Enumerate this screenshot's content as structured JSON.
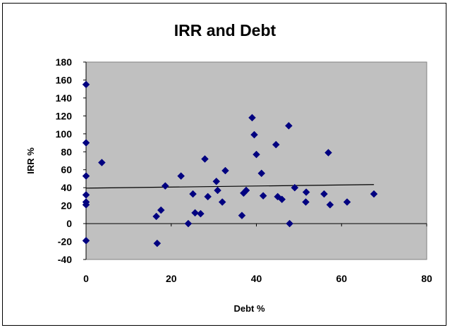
{
  "chart_data": {
    "type": "scatter",
    "title": "IRR and Debt",
    "xlabel": "Debt %",
    "ylabel": "IRR %",
    "xlim": [
      0,
      80
    ],
    "ylim": [
      -40,
      180
    ],
    "xticks": [
      "0",
      "20",
      "40",
      "60",
      "80"
    ],
    "yticks": [
      "-40",
      "-20",
      "0",
      "20",
      "40",
      "60",
      "80",
      "100",
      "120",
      "140",
      "160",
      "180"
    ],
    "grid": false,
    "plot_background": "#c0c0c0",
    "marker_color": "#000080",
    "marker": "diamond",
    "series": [
      {
        "points": [
          [
            0,
            155
          ],
          [
            0,
            90
          ],
          [
            0,
            53
          ],
          [
            0,
            32
          ],
          [
            0,
            24
          ],
          [
            0,
            21
          ],
          [
            0,
            -19
          ],
          [
            3.7,
            68
          ],
          [
            16.5,
            8
          ],
          [
            16.7,
            -22
          ],
          [
            17.6,
            15
          ],
          [
            18.6,
            42
          ],
          [
            22.3,
            53
          ],
          [
            24,
            0
          ],
          [
            25.1,
            33
          ],
          [
            25.6,
            12
          ],
          [
            26.9,
            11
          ],
          [
            27.9,
            72
          ],
          [
            28.6,
            30
          ],
          [
            30.6,
            47
          ],
          [
            30.9,
            37
          ],
          [
            32,
            24
          ],
          [
            32.7,
            59
          ],
          [
            36.6,
            9
          ],
          [
            37,
            34
          ],
          [
            37.6,
            37
          ],
          [
            39,
            118
          ],
          [
            39.5,
            99
          ],
          [
            40,
            77
          ],
          [
            41.2,
            56
          ],
          [
            41.6,
            31
          ],
          [
            44.6,
            88
          ],
          [
            45,
            30
          ],
          [
            46,
            27
          ],
          [
            47.6,
            109
          ],
          [
            47.8,
            0
          ],
          [
            49,
            40
          ],
          [
            51.6,
            24
          ],
          [
            51.7,
            35
          ],
          [
            55.9,
            33
          ],
          [
            56.9,
            79
          ],
          [
            57.3,
            21
          ],
          [
            61.3,
            24
          ],
          [
            67.6,
            33
          ]
        ]
      }
    ],
    "trendline": {
      "type": "linear",
      "x": [
        0,
        67.6
      ],
      "y": [
        39.5,
        43.5
      ]
    }
  }
}
